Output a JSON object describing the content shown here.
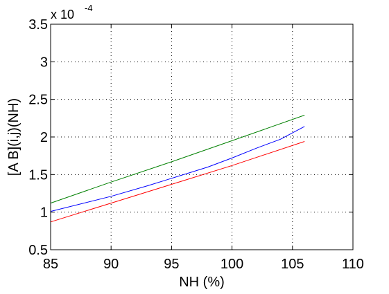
{
  "chart_data": {
    "type": "line",
    "title": "",
    "xlabel": "NH (%)",
    "ylabel": "[A B](i,j)(NH)",
    "xlim": [
      85,
      110
    ],
    "ylim": [
      0.5,
      3.5
    ],
    "x_ticks": [
      "85",
      "90",
      "95",
      "100",
      "105",
      "110"
    ],
    "y_ticks": [
      "0.5",
      "1",
      "1.5",
      "2",
      "2.5",
      "3",
      "3.5"
    ],
    "y_multiplier": {
      "base": "x 10",
      "exponent": "-4"
    },
    "grid": true,
    "legend": "none",
    "series": [
      {
        "color": "#008000",
        "x": [
          85,
          90,
          95,
          100,
          106
        ],
        "y": [
          1.12,
          1.4,
          1.67,
          1.95,
          2.29
        ]
      },
      {
        "color": "#0000ff",
        "x": [
          85,
          90,
          93,
          95,
          98,
          100,
          102,
          104,
          106
        ],
        "y": [
          1.01,
          1.21,
          1.35,
          1.45,
          1.6,
          1.72,
          1.85,
          1.97,
          2.14
        ]
      },
      {
        "color": "#ff0000",
        "x": [
          85,
          90,
          95,
          100,
          106
        ],
        "y": [
          0.87,
          1.12,
          1.37,
          1.62,
          1.94
        ]
      }
    ]
  }
}
